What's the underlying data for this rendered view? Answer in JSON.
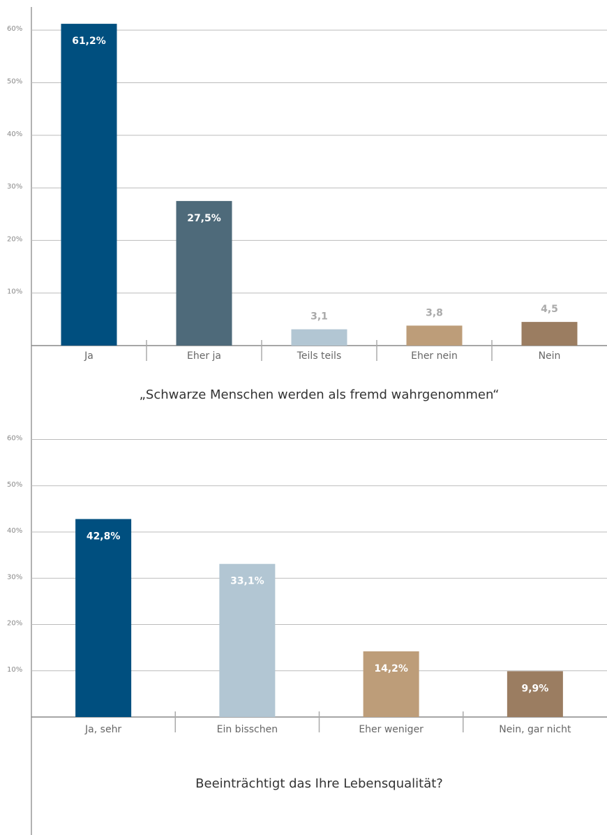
{
  "chart_data": [
    {
      "type": "bar",
      "title": "„Schwarze Menschen werden als fremd wahrgenommen“",
      "categories": [
        "Ja",
        "Eher ja",
        "Teils teils",
        "Eher nein",
        "Nein"
      ],
      "values": [
        61.2,
        27.5,
        3.1,
        3.8,
        4.5
      ],
      "value_labels": [
        "61,2%",
        "27,5%",
        "3,1",
        "3,8",
        "4,5"
      ],
      "colors": [
        "#004f7f",
        "#4e6a7a",
        "#b2c6d3",
        "#bd9d79",
        "#9b7d61"
      ],
      "ylim": [
        0,
        64
      ],
      "yticks": [
        {
          "value": 10,
          "label": "10%"
        },
        {
          "value": 20,
          "label": "20%"
        },
        {
          "value": 30,
          "label": "30%"
        },
        {
          "value": 40,
          "label": "40%"
        },
        {
          "value": 50,
          "label": "50%"
        },
        {
          "value": 60,
          "label": "60%"
        }
      ],
      "grid": true
    },
    {
      "type": "bar",
      "title": "Beeinträchtigt das Ihre Lebensqualität?",
      "categories": [
        "Ja, sehr",
        "Ein bisschen",
        "Eher weniger",
        "Nein, gar nicht"
      ],
      "values": [
        42.8,
        33.1,
        14.2,
        9.9
      ],
      "value_labels": [
        "42,8%",
        "33,1%",
        "14,2%",
        "9,9%"
      ],
      "colors": [
        "#004f7f",
        "#b2c6d3",
        "#bd9d79",
        "#9b7d61"
      ],
      "ylim": [
        0,
        64
      ],
      "yticks": [
        {
          "value": 10,
          "label": "10%"
        },
        {
          "value": 20,
          "label": "20%"
        },
        {
          "value": 30,
          "label": "30%"
        },
        {
          "value": 40,
          "label": "40%"
        },
        {
          "value": 50,
          "label": "50%"
        },
        {
          "value": 60,
          "label": "60%"
        }
      ],
      "grid": true
    }
  ]
}
